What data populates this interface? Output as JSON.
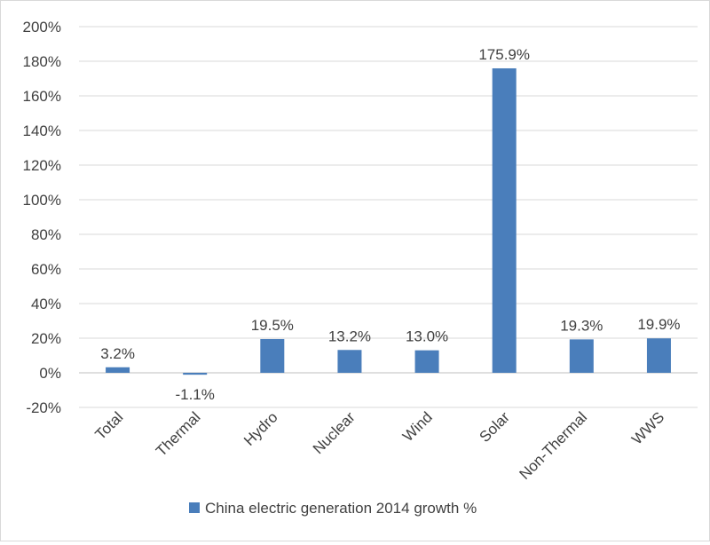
{
  "chart_data": {
    "type": "bar",
    "categories": [
      "Total",
      "Thermal",
      "Hydro",
      "Nuclear",
      "Wind",
      "Solar",
      "Non-Thermal",
      "WWS"
    ],
    "series": [
      {
        "name": "China electric generation 2014 growth %",
        "values": [
          3.2,
          -1.1,
          19.5,
          13.2,
          13.0,
          175.9,
          19.3,
          19.9
        ],
        "data_labels": [
          "3.2%",
          "-1.1%",
          "19.5%",
          "13.2%",
          "13.0%",
          "175.9%",
          "19.3%",
          "19.9%"
        ]
      }
    ],
    "ylim": [
      -20,
      200
    ],
    "yticks": [
      -20,
      0,
      20,
      40,
      60,
      80,
      100,
      120,
      140,
      160,
      180,
      200
    ],
    "ytick_labels": [
      "-20%",
      "0%",
      "20%",
      "40%",
      "60%",
      "80%",
      "100%",
      "120%",
      "140%",
      "160%",
      "180%",
      "200%"
    ],
    "grid": true,
    "legend_position": "bottom",
    "bar_color": "#4a7ebb"
  }
}
